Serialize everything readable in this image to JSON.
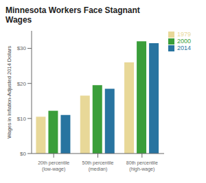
{
  "chart_data": {
    "type": "bar",
    "title": "Minnesota Workers Face Stagnant\nWages",
    "ylabel": "Wages in Inflation-Adjusted 2014 Dollars",
    "categories": [
      "20th percentile\n(low-wage)",
      "50th percentile\n(median)",
      "80th percentile\n(high-wage)"
    ],
    "series": [
      {
        "name": "1979",
        "color": "#e8d898",
        "values": [
          10.5,
          16.5,
          26.0
        ]
      },
      {
        "name": "2000",
        "color": "#3a9e3a",
        "values": [
          12.2,
          19.5,
          32.0
        ]
      },
      {
        "name": "2014",
        "color": "#2874a0",
        "values": [
          11.0,
          18.5,
          31.5
        ]
      }
    ],
    "ylim": [
      0,
      35
    ],
    "yticks": [
      {
        "value": 0,
        "label": "$0"
      },
      {
        "value": 10,
        "label": "$10"
      },
      {
        "value": 20,
        "label": "$20"
      },
      {
        "value": 30,
        "label": "$30"
      }
    ],
    "grid": false,
    "legend": "right"
  }
}
